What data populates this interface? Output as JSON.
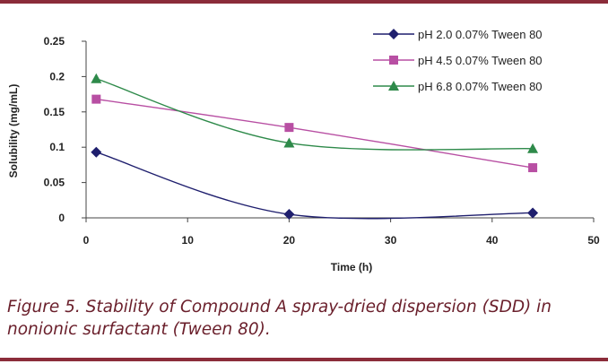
{
  "colors": {
    "rule": "#8b2c3a",
    "caption": "#6a1f2b"
  },
  "caption": "Figure 5. Stability of Compound A spray-dried dispersion (SDD) in nonionic surfactant (Tween 80).",
  "chart_data": {
    "type": "line",
    "title": "",
    "xlabel": "Time (h)",
    "ylabel": "Solubility (mg/mL)",
    "xlim": [
      0,
      50
    ],
    "ylim": [
      0,
      0.25
    ],
    "xticks": [
      "0",
      "10",
      "20",
      "30",
      "40",
      "50"
    ],
    "yticks": [
      "0",
      "0.05",
      "0.1",
      "0.15",
      "0.2",
      "0.25"
    ],
    "legend_position": "top-right",
    "grid": false,
    "series": [
      {
        "name": "pH 2.0 0.07% Tween 80",
        "marker": "diamond",
        "color": "#1f1f6e",
        "x": [
          1,
          20,
          44
        ],
        "y": [
          0.093,
          0.005,
          0.007
        ]
      },
      {
        "name": "pH 4.5 0.07% Tween 80",
        "marker": "square",
        "color": "#b84fa3",
        "x": [
          1,
          20,
          44
        ],
        "y": [
          0.168,
          0.128,
          0.071
        ]
      },
      {
        "name": "pH 6.8 0.07% Tween 80",
        "marker": "triangle",
        "color": "#2e8a4a",
        "x": [
          1,
          20,
          44
        ],
        "y": [
          0.197,
          0.106,
          0.098
        ]
      }
    ]
  }
}
